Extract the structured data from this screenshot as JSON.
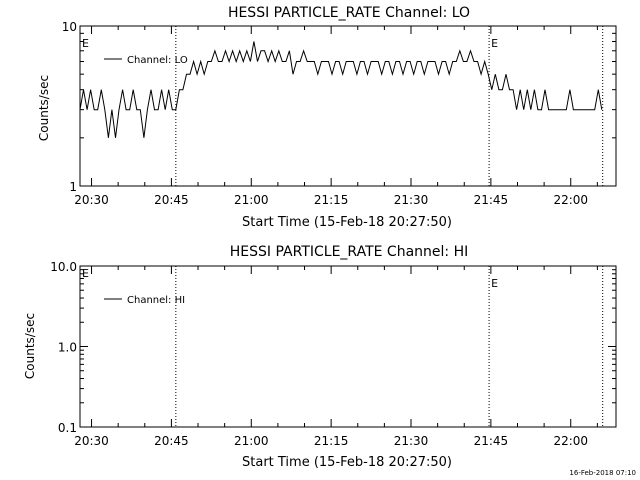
{
  "chart_data": [
    {
      "type": "line",
      "title": "HESSI PARTICLE_RATE Channel: LO",
      "xlabel": "Start Time (15-Feb-18 20:27:50)",
      "ylabel": "Counts/sec",
      "y_scale": "log",
      "ylim": [
        1,
        10
      ],
      "y_ticks": [
        "1",
        "10"
      ],
      "x_range": [
        "20:27:50",
        "22:08:30"
      ],
      "x_ticks": [
        "20:30",
        "20:45",
        "21:00",
        "21:15",
        "21:30",
        "21:45",
        "22:00"
      ],
      "legend": {
        "placement": "top-left",
        "entries": [
          "Channel: LO"
        ]
      },
      "event_markers": [
        {
          "time": "20:45:50",
          "label": ""
        },
        {
          "time": "21:44:40",
          "label": "E"
        },
        {
          "time": "22:06:00",
          "label": ""
        }
      ],
      "start_marker_label": "E",
      "series": [
        {
          "name": "Channel: LO",
          "x_unit": "time",
          "points": [
            [
              "20:27:50",
              3
            ],
            [
              "20:28:30",
              4
            ],
            [
              "20:29:10",
              3
            ],
            [
              "20:29:50",
              4
            ],
            [
              "20:30:30",
              3
            ],
            [
              "20:31:10",
              3
            ],
            [
              "20:31:50",
              4
            ],
            [
              "20:32:30",
              3
            ],
            [
              "20:33:10",
              2
            ],
            [
              "20:33:50",
              3
            ],
            [
              "20:34:30",
              2
            ],
            [
              "20:35:10",
              3
            ],
            [
              "20:35:50",
              4
            ],
            [
              "20:36:30",
              3
            ],
            [
              "20:37:10",
              3
            ],
            [
              "20:37:50",
              4
            ],
            [
              "20:38:30",
              3
            ],
            [
              "20:39:10",
              3
            ],
            [
              "20:39:50",
              2
            ],
            [
              "20:40:30",
              3
            ],
            [
              "20:41:10",
              4
            ],
            [
              "20:41:50",
              3
            ],
            [
              "20:42:30",
              3
            ],
            [
              "20:43:10",
              4
            ],
            [
              "20:43:50",
              3
            ],
            [
              "20:44:30",
              4
            ],
            [
              "20:45:10",
              3
            ],
            [
              "20:45:50",
              3
            ],
            [
              "20:46:30",
              4
            ],
            [
              "20:47:10",
              4
            ],
            [
              "20:47:50",
              5
            ],
            [
              "20:48:30",
              5
            ],
            [
              "20:49:10",
              6
            ],
            [
              "20:49:50",
              5
            ],
            [
              "20:50:30",
              6
            ],
            [
              "20:51:10",
              5
            ],
            [
              "20:51:50",
              6
            ],
            [
              "20:52:30",
              6
            ],
            [
              "20:53:10",
              7
            ],
            [
              "20:53:50",
              6
            ],
            [
              "20:54:30",
              6
            ],
            [
              "20:55:10",
              7
            ],
            [
              "20:55:50",
              6
            ],
            [
              "20:56:30",
              7
            ],
            [
              "20:57:10",
              6
            ],
            [
              "20:57:50",
              7
            ],
            [
              "20:58:30",
              6
            ],
            [
              "20:59:10",
              7
            ],
            [
              "20:59:50",
              6
            ],
            [
              "21:00:30",
              8
            ],
            [
              "21:01:10",
              6
            ],
            [
              "21:01:50",
              7
            ],
            [
              "21:02:30",
              7
            ],
            [
              "21:03:10",
              6
            ],
            [
              "21:03:50",
              7
            ],
            [
              "21:04:30",
              6
            ],
            [
              "21:05:10",
              7
            ],
            [
              "21:05:50",
              6
            ],
            [
              "21:06:30",
              6
            ],
            [
              "21:07:10",
              7
            ],
            [
              "21:07:50",
              5
            ],
            [
              "21:08:30",
              6
            ],
            [
              "21:09:10",
              6
            ],
            [
              "21:09:50",
              7
            ],
            [
              "21:10:30",
              6
            ],
            [
              "21:11:10",
              6
            ],
            [
              "21:11:50",
              6
            ],
            [
              "21:12:30",
              5
            ],
            [
              "21:13:10",
              6
            ],
            [
              "21:13:50",
              6
            ],
            [
              "21:14:30",
              6
            ],
            [
              "21:15:10",
              5
            ],
            [
              "21:15:50",
              6
            ],
            [
              "21:16:30",
              6
            ],
            [
              "21:17:10",
              5
            ],
            [
              "21:17:50",
              6
            ],
            [
              "21:18:30",
              6
            ],
            [
              "21:19:10",
              6
            ],
            [
              "21:19:50",
              5
            ],
            [
              "21:20:30",
              6
            ],
            [
              "21:21:10",
              6
            ],
            [
              "21:21:50",
              5
            ],
            [
              "21:22:30",
              6
            ],
            [
              "21:23:10",
              6
            ],
            [
              "21:23:50",
              6
            ],
            [
              "21:24:30",
              5
            ],
            [
              "21:25:10",
              6
            ],
            [
              "21:25:50",
              6
            ],
            [
              "21:26:30",
              5
            ],
            [
              "21:27:10",
              6
            ],
            [
              "21:27:50",
              6
            ],
            [
              "21:28:30",
              5
            ],
            [
              "21:29:10",
              6
            ],
            [
              "21:29:50",
              6
            ],
            [
              "21:30:30",
              5
            ],
            [
              "21:31:10",
              6
            ],
            [
              "21:31:50",
              6
            ],
            [
              "21:32:30",
              5
            ],
            [
              "21:33:10",
              6
            ],
            [
              "21:33:50",
              6
            ],
            [
              "21:34:30",
              6
            ],
            [
              "21:35:10",
              5
            ],
            [
              "21:35:50",
              6
            ],
            [
              "21:36:30",
              6
            ],
            [
              "21:37:10",
              5
            ],
            [
              "21:37:50",
              6
            ],
            [
              "21:38:30",
              6
            ],
            [
              "21:39:10",
              7
            ],
            [
              "21:39:50",
              6
            ],
            [
              "21:40:30",
              6
            ],
            [
              "21:41:10",
              7
            ],
            [
              "21:41:50",
              6
            ],
            [
              "21:42:30",
              6
            ],
            [
              "21:43:10",
              5
            ],
            [
              "21:43:50",
              6
            ],
            [
              "21:44:30",
              5
            ],
            [
              "21:45:10",
              4
            ],
            [
              "21:45:50",
              5
            ],
            [
              "21:46:30",
              4
            ],
            [
              "21:47:10",
              4
            ],
            [
              "21:47:50",
              5
            ],
            [
              "21:48:30",
              4
            ],
            [
              "21:49:10",
              4
            ],
            [
              "21:49:50",
              3
            ],
            [
              "21:50:30",
              4
            ],
            [
              "21:51:10",
              3
            ],
            [
              "21:51:50",
              4
            ],
            [
              "21:52:30",
              3
            ],
            [
              "21:53:10",
              4
            ],
            [
              "21:53:50",
              3
            ],
            [
              "21:54:30",
              3
            ],
            [
              "21:55:10",
              4
            ],
            [
              "21:55:50",
              3
            ],
            [
              "21:56:30",
              3
            ],
            [
              "21:57:10",
              3
            ],
            [
              "21:57:50",
              3
            ],
            [
              "21:58:30",
              3
            ],
            [
              "21:59:10",
              3
            ],
            [
              "21:59:50",
              4
            ],
            [
              "22:00:30",
              3
            ],
            [
              "22:01:10",
              3
            ],
            [
              "22:01:50",
              3
            ],
            [
              "22:02:30",
              3
            ],
            [
              "22:03:10",
              3
            ],
            [
              "22:03:50",
              3
            ],
            [
              "22:04:30",
              3
            ],
            [
              "22:05:10",
              4
            ],
            [
              "22:05:50",
              3
            ]
          ]
        }
      ]
    },
    {
      "type": "line",
      "title": "HESSI PARTICLE_RATE Channel: HI",
      "xlabel": "Start Time (15-Feb-18 20:27:50)",
      "ylabel": "Counts/sec",
      "y_scale": "log",
      "ylim": [
        0.1,
        10
      ],
      "y_ticks": [
        "0.1",
        "1.0",
        "10.0"
      ],
      "x_range": [
        "20:27:50",
        "22:08:30"
      ],
      "x_ticks": [
        "20:30",
        "20:45",
        "21:00",
        "21:15",
        "21:30",
        "21:45",
        "22:00"
      ],
      "legend": {
        "placement": "top-left",
        "entries": [
          "Channel: HI"
        ]
      },
      "event_markers": [
        {
          "time": "20:45:50",
          "label": ""
        },
        {
          "time": "21:44:40",
          "label": "E"
        },
        {
          "time": "22:06:00",
          "label": ""
        }
      ],
      "start_marker_label": "E",
      "series": [
        {
          "name": "Channel: HI",
          "x_unit": "time",
          "points": []
        }
      ]
    }
  ],
  "footer": {
    "timestamp": "16-Feb-2018 07:10"
  }
}
